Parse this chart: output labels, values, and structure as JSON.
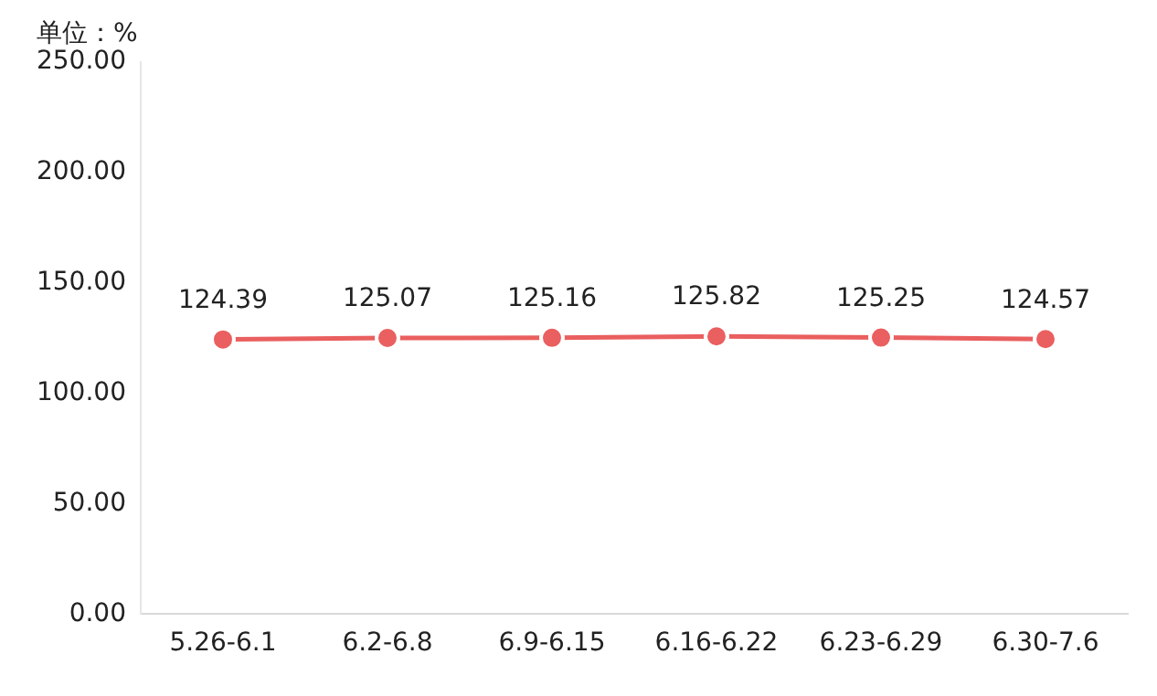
{
  "chart_data": {
    "type": "line",
    "ylabel": "单位：%",
    "categories": [
      "5.26-6.1",
      "6.2-6.8",
      "6.9-6.15",
      "6.16-6.22",
      "6.23-6.29",
      "6.30-7.6"
    ],
    "series": [
      {
        "color": "#ea5f5f",
        "values": [
          124.39,
          125.07,
          125.16,
          125.82,
          125.25,
          124.57
        ]
      }
    ],
    "ylim": [
      0,
      250
    ],
    "yticks": [
      {
        "value": 0,
        "label": "0.00"
      },
      {
        "value": 50,
        "label": "50.00"
      },
      {
        "value": 100,
        "label": "100.00"
      },
      {
        "value": 150,
        "label": "150.00"
      },
      {
        "value": 200,
        "label": "200.00"
      },
      {
        "value": 250,
        "label": "250.00"
      }
    ],
    "grid": false,
    "legend": false,
    "marker": "circle",
    "line_style": "solid",
    "data_labels": true
  }
}
